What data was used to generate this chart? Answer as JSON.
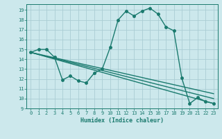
{
  "title": "",
  "xlabel": "Humidex (Indice chaleur)",
  "bg_color": "#cce8ec",
  "grid_color": "#aacdd4",
  "line_color": "#1a7a6e",
  "xlim": [
    -0.5,
    23.5
  ],
  "ylim": [
    9,
    19.6
  ],
  "yticks": [
    9,
    10,
    11,
    12,
    13,
    14,
    15,
    16,
    17,
    18,
    19
  ],
  "xticks": [
    0,
    1,
    2,
    3,
    4,
    5,
    6,
    7,
    8,
    9,
    10,
    11,
    12,
    13,
    14,
    15,
    16,
    17,
    18,
    19,
    20,
    21,
    22,
    23
  ],
  "line1_x": [
    0,
    1,
    2,
    3,
    4,
    5,
    6,
    7,
    8,
    9,
    10,
    11,
    12,
    13,
    14,
    15,
    16,
    17,
    18,
    19,
    20,
    21,
    22,
    23
  ],
  "line1_y": [
    14.7,
    15.0,
    15.0,
    14.2,
    11.9,
    12.3,
    11.8,
    11.6,
    12.6,
    13.0,
    15.2,
    18.0,
    18.9,
    18.4,
    18.9,
    19.2,
    18.6,
    17.3,
    16.9,
    12.1,
    9.5,
    10.1,
    9.7,
    9.5
  ],
  "straight_lines": [
    {
      "x": [
        0,
        23
      ],
      "y": [
        14.7,
        9.5
      ]
    },
    {
      "x": [
        0,
        23
      ],
      "y": [
        14.7,
        10.0
      ]
    },
    {
      "x": [
        0,
        23
      ],
      "y": [
        14.7,
        10.5
      ]
    }
  ],
  "marker_size": 2.5,
  "line_width": 1.0,
  "tick_fontsize": 5.0,
  "xlabel_fontsize": 6.0
}
